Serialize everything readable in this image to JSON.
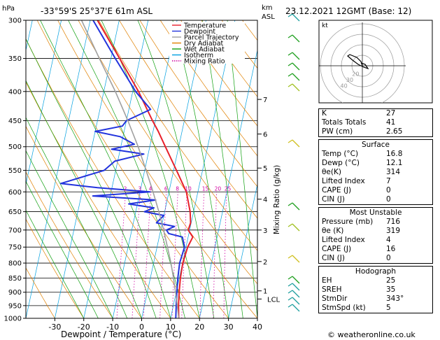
{
  "header": {
    "location": "-33°59'S  25°37'E  61m  ASL",
    "datetime": "23.12.2021  12GMT  (Base: 12)",
    "hpa_label": "hPa",
    "km_label": "km",
    "asl_label": "ASL"
  },
  "footer": {
    "credit": "© weatheronline.co.uk"
  },
  "chart_data": {
    "type": "line",
    "title": "",
    "xlabel": "Dewpoint / Temperature (°C)",
    "ylabel": "",
    "right_label": "Mixing Ratio (g/kg)",
    "xlim": [
      -40,
      40
    ],
    "ylim_hpa": [
      1000,
      300
    ],
    "pressure_ticks": [
      300,
      350,
      400,
      450,
      500,
      550,
      600,
      650,
      700,
      750,
      800,
      850,
      900,
      950,
      1000
    ],
    "temp_ticks": [
      -30,
      -20,
      -10,
      0,
      10,
      20,
      30,
      40
    ],
    "km_ticks": [
      {
        "km": "1",
        "p": 895
      },
      {
        "km": "2",
        "p": 795
      },
      {
        "km": "3",
        "p": 700
      },
      {
        "km": "4",
        "p": 618
      },
      {
        "km": "5",
        "p": 545
      },
      {
        "km": "6",
        "p": 475
      },
      {
        "km": "7",
        "p": 413
      }
    ],
    "lcl": {
      "label": "LCL",
      "p": 925
    },
    "mixing_ratio_labels": [
      "2",
      "3",
      "4",
      "6",
      "8",
      "10",
      "15",
      "20",
      "25"
    ],
    "legend": [
      {
        "name": "Temperature",
        "color": "#e8202a",
        "dash": false
      },
      {
        "name": "Dewpoint",
        "color": "#2233dd",
        "dash": false
      },
      {
        "name": "Parcel Trajectory",
        "color": "#a0a0a0",
        "dash": false
      },
      {
        "name": "Dry Adiabat",
        "color": "#e08000",
        "dash": false
      },
      {
        "name": "Wet Adiabat",
        "color": "#10a010",
        "dash": false
      },
      {
        "name": "Isotherm",
        "color": "#00a0e0",
        "dash": false
      },
      {
        "name": "Mixing Ratio",
        "color": "#d000a0",
        "dash": true
      }
    ],
    "series": [
      {
        "name": "Temperature",
        "color": "#e8202a",
        "points": [
          [
            1000,
            12.8
          ],
          [
            950,
            11.8
          ],
          [
            900,
            11.0
          ],
          [
            850,
            10.4
          ],
          [
            800,
            10.1
          ],
          [
            750,
            10.6
          ],
          [
            720,
            11.6
          ],
          [
            700,
            9.5
          ],
          [
            680,
            9.8
          ],
          [
            650,
            8.8
          ],
          [
            600,
            6.0
          ],
          [
            550,
            1.0
          ],
          [
            500,
            -4.6
          ],
          [
            470,
            -8.2
          ],
          [
            450,
            -11.0
          ],
          [
            400,
            -18.0
          ],
          [
            350,
            -27.0
          ],
          [
            300,
            -37.5
          ]
        ]
      },
      {
        "name": "Dewpoint",
        "color": "#2233dd",
        "points": [
          [
            1000,
            11.8
          ],
          [
            950,
            11.0
          ],
          [
            900,
            10.2
          ],
          [
            850,
            9.5
          ],
          [
            800,
            9.0
          ],
          [
            750,
            9.5
          ],
          [
            720,
            8.0
          ],
          [
            710,
            3.0
          ],
          [
            700,
            2.0
          ],
          [
            690,
            4.5
          ],
          [
            680,
            -2.0
          ],
          [
            660,
            0
          ],
          [
            650,
            -7.0
          ],
          [
            640,
            -4.0
          ],
          [
            630,
            -13.0
          ],
          [
            620,
            -4.0
          ],
          [
            610,
            -26.0
          ],
          [
            600,
            -6.5
          ],
          [
            590,
            -25.0
          ],
          [
            580,
            -38.0
          ],
          [
            550,
            -24.0
          ],
          [
            530,
            -21.0
          ],
          [
            515,
            -11.5
          ],
          [
            505,
            -23.0
          ],
          [
            495,
            -15.5
          ],
          [
            480,
            -21.0
          ],
          [
            470,
            -30.0
          ],
          [
            460,
            -21.0
          ],
          [
            450,
            -20.0
          ],
          [
            430,
            -12.5
          ],
          [
            400,
            -19.0
          ],
          [
            350,
            -28.5
          ],
          [
            300,
            -39.0
          ]
        ]
      },
      {
        "name": "Parcel Trajectory",
        "color": "#a0a0a0",
        "points": [
          [
            1000,
            12.8
          ],
          [
            925,
            10.6
          ],
          [
            850,
            8.0
          ],
          [
            800,
            6.0
          ],
          [
            750,
            3.6
          ],
          [
            700,
            1.0
          ],
          [
            650,
            -2.0
          ],
          [
            600,
            -5.5
          ],
          [
            550,
            -9.5
          ],
          [
            500,
            -14.0
          ],
          [
            450,
            -19.5
          ],
          [
            400,
            -26.0
          ],
          [
            350,
            -34.0
          ],
          [
            300,
            -43.0
          ]
        ]
      }
    ],
    "hodograph": {
      "label": "kt",
      "ring_labels": [
        "40",
        "30",
        "20"
      ]
    },
    "indices": {
      "rows": [
        {
          "label": "K",
          "value": "27"
        },
        {
          "label": "Totals Totals",
          "value": "41"
        },
        {
          "label": "PW (cm)",
          "value": "2.65"
        }
      ]
    },
    "surface": {
      "title": "Surface",
      "rows": [
        {
          "label": "Temp (°C)",
          "value": "16.8"
        },
        {
          "label": "Dewp (°C)",
          "value": "12.1"
        },
        {
          "label": "θe(K)",
          "value": "314"
        },
        {
          "label": "Lifted Index",
          "value": "7"
        },
        {
          "label": "CAPE (J)",
          "value": "0"
        },
        {
          "label": "CIN (J)",
          "value": "0"
        }
      ]
    },
    "most_unstable": {
      "title": "Most Unstable",
      "rows": [
        {
          "label": "Pressure (mb)",
          "value": "716"
        },
        {
          "label": "θe (K)",
          "value": "319"
        },
        {
          "label": "Lifted Index",
          "value": "4"
        },
        {
          "label": "CAPE (J)",
          "value": "16"
        },
        {
          "label": "CIN (J)",
          "value": "0"
        }
      ]
    },
    "hodograph_table": {
      "title": "Hodograph",
      "rows": [
        {
          "label": "EH",
          "value": "25"
        },
        {
          "label": "SREH",
          "value": "35"
        },
        {
          "label": "StmDir",
          "value": "343°"
        },
        {
          "label": "StmSpd (kt)",
          "value": "5"
        }
      ]
    }
  }
}
